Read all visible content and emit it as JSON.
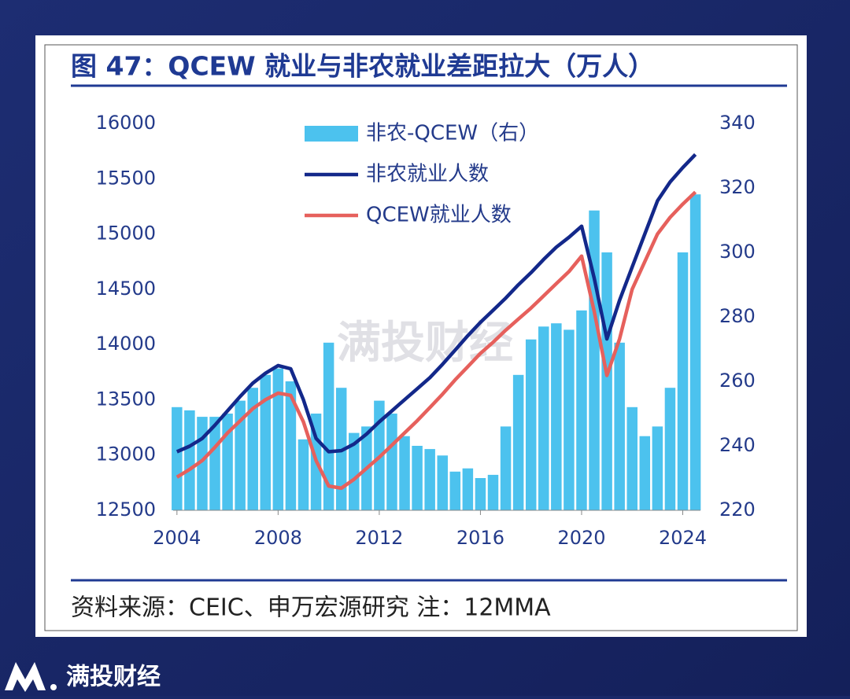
{
  "chart_data": {
    "type": "combo",
    "title": "图 47：QCEW 就业与非农就业差距拉大（万人）",
    "source": "资料来源：CEIC、申万宏源研究    注：12MMA",
    "x": [
      2004,
      2004.5,
      2005,
      2005.5,
      2006,
      2006.5,
      2007,
      2007.5,
      2008,
      2008.5,
      2009,
      2009.5,
      2010,
      2010.5,
      2011,
      2011.5,
      2012,
      2012.5,
      2013,
      2013.5,
      2014,
      2014.5,
      2015,
      2015.5,
      2016,
      2016.5,
      2017,
      2017.5,
      2018,
      2018.5,
      2019,
      2019.5,
      2020,
      2020.5,
      2021,
      2021.5,
      2022,
      2022.5,
      2023,
      2023.5,
      2024,
      2024.5
    ],
    "series": [
      {
        "name": "非农-QCEW（右）",
        "type": "bar",
        "axis": "y2",
        "color": "#4cc2ee",
        "values": [
          252,
          251,
          249,
          249,
          250,
          254,
          258,
          262,
          264,
          260,
          242,
          250,
          272,
          258,
          244,
          246,
          254,
          250,
          243,
          240,
          239,
          237,
          232,
          233,
          230,
          231,
          246,
          262,
          273,
          277,
          278,
          276,
          282,
          313,
          300,
          272,
          252,
          243,
          246,
          258,
          300,
          318
        ]
      },
      {
        "name": "非农就业人数",
        "type": "line",
        "color": "#13288a",
        "values": [
          13030,
          13080,
          13150,
          13270,
          13400,
          13530,
          13650,
          13740,
          13810,
          13780,
          13500,
          13150,
          13030,
          13040,
          13100,
          13190,
          13300,
          13400,
          13500,
          13600,
          13700,
          13820,
          13950,
          14080,
          14200,
          14310,
          14420,
          14540,
          14650,
          14770,
          14880,
          14970,
          15070,
          14600,
          14050,
          14400,
          14700,
          15000,
          15300,
          15470,
          15600,
          15720
        ]
      },
      {
        "name": "QCEW就业人数",
        "type": "line",
        "color": "#e6605c",
        "values": [
          12800,
          12870,
          12950,
          13070,
          13200,
          13310,
          13420,
          13500,
          13560,
          13540,
          13300,
          12950,
          12720,
          12700,
          12780,
          12880,
          12980,
          13090,
          13200,
          13310,
          13430,
          13550,
          13680,
          13800,
          13920,
          14020,
          14130,
          14230,
          14330,
          14440,
          14550,
          14660,
          14800,
          14300,
          13720,
          14050,
          14500,
          14750,
          15000,
          15150,
          15270,
          15380
        ]
      }
    ],
    "xlim": [
      2003.85,
      2024.7
    ],
    "xticks": [
      2004,
      2008,
      2012,
      2016,
      2020,
      2024
    ],
    "ylim": [
      12500,
      16000
    ],
    "yticks": [
      12500,
      13000,
      13500,
      14000,
      14500,
      15000,
      15500,
      16000
    ],
    "y2lim": [
      220,
      340
    ],
    "y2ticks": [
      220,
      240,
      260,
      280,
      300,
      320,
      340
    ]
  },
  "watermark": "满投财经",
  "brand": "满投财经"
}
